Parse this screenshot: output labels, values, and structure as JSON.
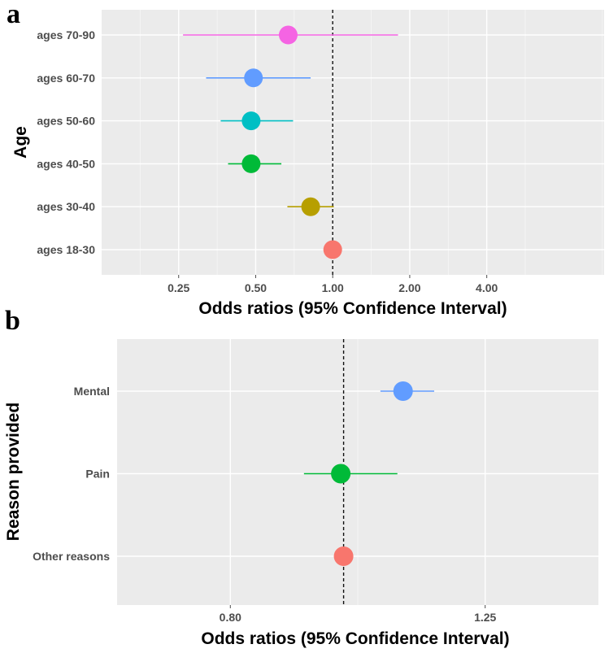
{
  "chart_data": [
    {
      "panel": "a",
      "type": "scatter",
      "subtype": "forest-plot",
      "xscale": "log2",
      "xlabel": "Odds ratios (95% Confidence Interval)",
      "ylabel": "Age",
      "xticks": [
        0.25,
        0.5,
        1.0,
        2.0,
        4.0
      ],
      "xtick_labels": [
        "0.25",
        "0.50",
        "1.00",
        "2.00",
        "4.00"
      ],
      "xlim": [
        0.125,
        11.5
      ],
      "reference_line": 1.0,
      "categories": [
        "ages 70-90",
        "ages 60-70",
        "ages 50-60",
        "ages 40-50",
        "ages 30-40",
        "ages 18-30"
      ],
      "values": [
        0.67,
        0.49,
        0.48,
        0.48,
        0.82,
        1.0
      ],
      "ci_low": [
        0.26,
        0.32,
        0.365,
        0.39,
        0.665,
        1.0
      ],
      "ci_high": [
        1.8,
        0.82,
        0.7,
        0.63,
        1.01,
        1.0
      ],
      "colors": [
        "#f564e3",
        "#619cff",
        "#00bfc4",
        "#00ba38",
        "#b79f00",
        "#f8766d"
      ]
    },
    {
      "panel": "b",
      "type": "scatter",
      "subtype": "forest-plot",
      "xscale": "linear",
      "xlabel": "Odds ratios (95% Confidence Interval)",
      "ylabel": "Reason provided",
      "xticks": [
        0.8,
        1.25
      ],
      "xtick_labels": [
        "0.80",
        "1.25"
      ],
      "xlim": [
        0.6,
        1.45
      ],
      "reference_line": 1.0,
      "categories": [
        "Mental",
        "Pain",
        "Other reasons"
      ],
      "values": [
        1.105,
        0.995,
        1.0
      ],
      "ci_low": [
        1.065,
        0.93,
        1.0
      ],
      "ci_high": [
        1.16,
        1.095,
        1.0
      ],
      "colors": [
        "#619cff",
        "#00ba38",
        "#f8766d"
      ]
    }
  ]
}
